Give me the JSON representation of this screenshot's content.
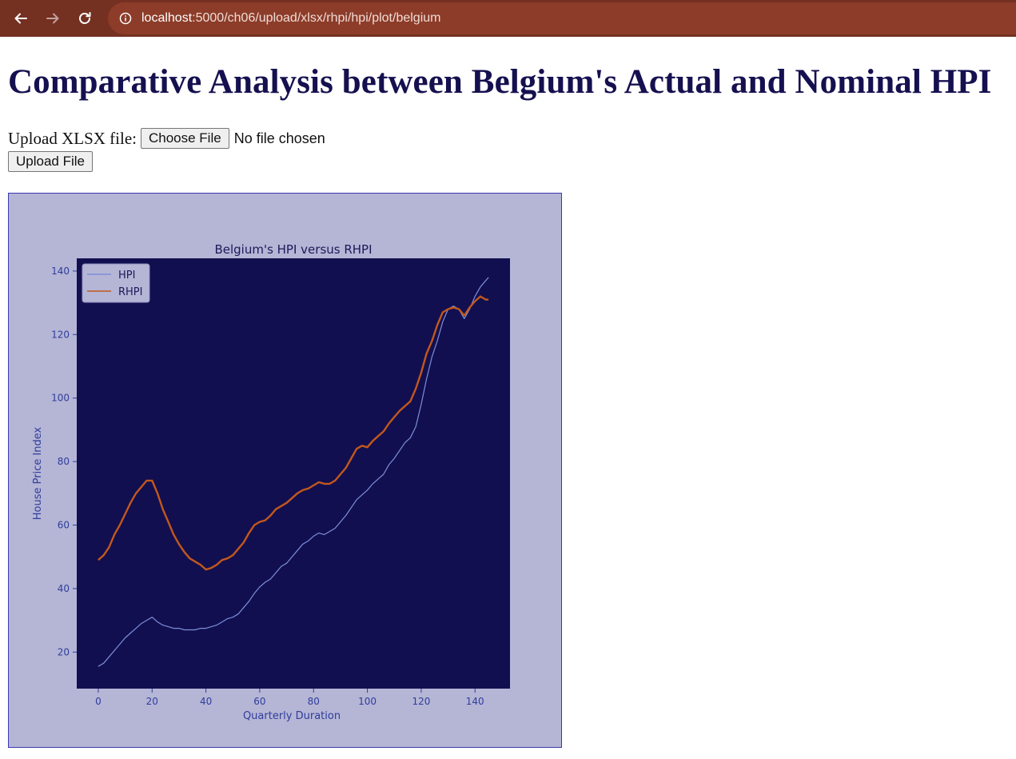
{
  "browser": {
    "url_host": "localhost",
    "url_path": ":5000/ch06/upload/xlsx/rhpi/hpi/plot/belgium"
  },
  "page": {
    "title": "Comparative Analysis between Belgium's Actual and Nominal HPI",
    "upload_label": "Upload XLSX file:",
    "choose_file_label": "Choose File",
    "no_file_text": "No file chosen",
    "upload_button_label": "Upload File"
  },
  "colors": {
    "browser_bar": "#743021",
    "heading": "#15104f",
    "figure_bg": "#b5b5d6",
    "axes_bg": "#120f50",
    "hpi_line": "#7b8fd8",
    "rhpi_line": "#c2581c",
    "axis_text": "#2f3d9a"
  },
  "chart_data": {
    "type": "line",
    "title": "Belgium's HPI versus RHPI",
    "xlabel": "Quarterly Duration",
    "ylabel": "House Price Index",
    "xlim": [
      -8,
      153
    ],
    "ylim": [
      8.5,
      144
    ],
    "xticks": [
      0,
      20,
      40,
      60,
      80,
      100,
      120,
      140
    ],
    "yticks": [
      20,
      40,
      60,
      80,
      100,
      120,
      140
    ],
    "grid": false,
    "legend": "upper-left",
    "series": [
      {
        "name": "HPI",
        "color": "#7b8fd8",
        "x": [
          0,
          2,
          4,
          6,
          8,
          10,
          12,
          14,
          16,
          18,
          20,
          22,
          24,
          26,
          28,
          30,
          32,
          34,
          36,
          38,
          40,
          42,
          44,
          46,
          48,
          50,
          52,
          54,
          56,
          58,
          60,
          62,
          64,
          66,
          68,
          70,
          72,
          74,
          76,
          78,
          80,
          82,
          84,
          86,
          88,
          90,
          92,
          94,
          96,
          98,
          100,
          102,
          104,
          106,
          108,
          110,
          112,
          114,
          116,
          118,
          120,
          122,
          124,
          126,
          128,
          130,
          132,
          134,
          136,
          138,
          140,
          142,
          144,
          145
        ],
        "y": [
          15.5,
          16.5,
          18.5,
          20.5,
          22.5,
          24.5,
          26,
          27.5,
          29,
          30,
          31,
          29.5,
          28.5,
          28,
          27.5,
          27.5,
          27,
          27,
          27,
          27.5,
          27.5,
          28,
          28.5,
          29.5,
          30.5,
          31,
          32,
          34,
          36,
          38.5,
          40.5,
          42,
          43,
          45,
          47,
          48,
          50,
          52,
          54,
          55,
          56.5,
          57.5,
          57,
          58,
          59,
          61,
          63,
          65.5,
          68,
          69.5,
          71,
          73,
          74.5,
          76,
          79,
          81,
          83.5,
          86,
          87.5,
          91,
          98,
          106,
          113,
          118,
          124,
          128,
          129,
          128,
          125,
          128,
          132,
          135,
          137,
          138
        ]
      },
      {
        "name": "RHPI",
        "color": "#c2581c",
        "x": [
          0,
          2,
          4,
          6,
          8,
          10,
          12,
          14,
          16,
          18,
          20,
          22,
          24,
          26,
          28,
          30,
          32,
          34,
          36,
          38,
          40,
          42,
          44,
          46,
          48,
          50,
          52,
          54,
          56,
          58,
          60,
          62,
          64,
          66,
          68,
          70,
          72,
          74,
          76,
          78,
          80,
          82,
          84,
          86,
          88,
          90,
          92,
          94,
          96,
          98,
          100,
          102,
          104,
          106,
          108,
          110,
          112,
          114,
          116,
          118,
          120,
          122,
          124,
          126,
          128,
          130,
          132,
          134,
          136,
          138,
          140,
          142,
          144,
          145
        ],
        "y": [
          49,
          50.5,
          53,
          57,
          60,
          63.5,
          67,
          70,
          72,
          74,
          74,
          70,
          65,
          61,
          57,
          54,
          51.5,
          49.5,
          48.5,
          47.5,
          46,
          46.5,
          47.5,
          49,
          49.5,
          50.5,
          52.5,
          54.5,
          57.5,
          60,
          61,
          61.5,
          63,
          65,
          66,
          67,
          68.5,
          70,
          71,
          71.5,
          72.5,
          73.5,
          73,
          73,
          74,
          76,
          78,
          81,
          84,
          85,
          84.5,
          86.5,
          88,
          89.5,
          92,
          94,
          96,
          97.5,
          99,
          103,
          108,
          114,
          118,
          123,
          127,
          128,
          128.5,
          128,
          126,
          128.5,
          130.5,
          132,
          131,
          131
        ]
      }
    ]
  }
}
